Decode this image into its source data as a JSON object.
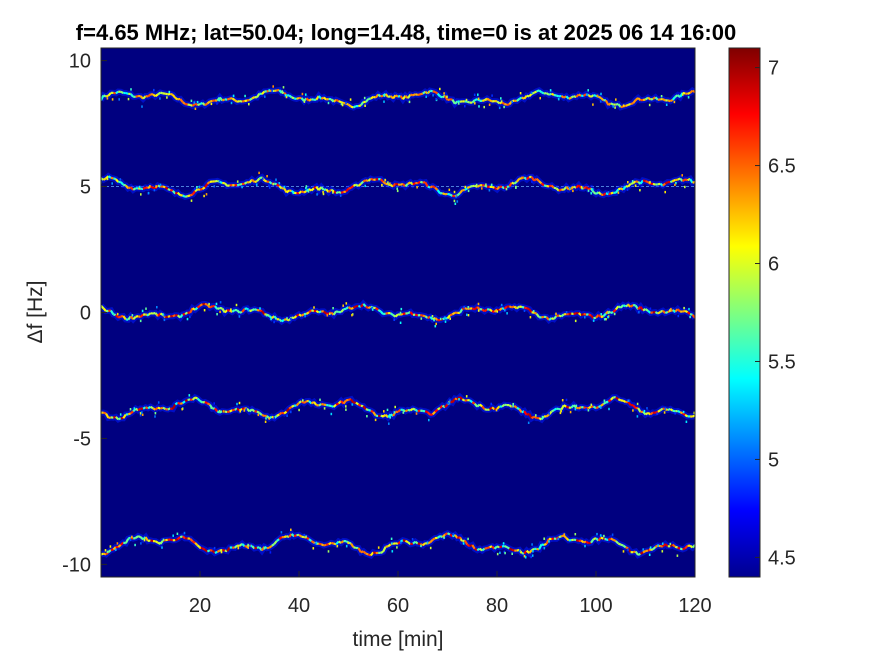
{
  "chart_data": {
    "type": "heatmap",
    "title": "f=4.65 MHz;  lat=50.04; long=14.48, time=0 is at 2025 06 14 16:00",
    "xlabel": "time [min]",
    "ylabel": "Δf [Hz]",
    "xlim": [
      0,
      120
    ],
    "ylim": [
      -10.5,
      10.5
    ],
    "xticks": [
      20,
      40,
      60,
      80,
      100,
      120
    ],
    "xtick_labels": [
      "20",
      "40",
      "60",
      "80",
      "100",
      "120"
    ],
    "yticks": [
      10,
      5,
      0,
      -5,
      -10
    ],
    "ytick_labels": [
      "10",
      "5",
      "0",
      "-5",
      "-10"
    ],
    "colorbar": {
      "colormap": "jet",
      "range": [
        4.4,
        7.1
      ],
      "ticks": [
        7,
        6.5,
        6,
        5.5,
        5,
        4.5
      ],
      "tick_labels": [
        "7",
        "6.5",
        "6",
        "5.5",
        "5",
        "4.5"
      ]
    },
    "background_value": 4.45,
    "traces": [
      {
        "base_hz": 8.5,
        "amplitude_hz": 0.3,
        "peak_value": 6.6
      },
      {
        "base_hz": 5.0,
        "amplitude_hz": 0.35,
        "peak_value": 6.9
      },
      {
        "base_hz": 0.0,
        "amplitude_hz": 0.3,
        "peak_value": 7.0
      },
      {
        "base_hz": -3.8,
        "amplitude_hz": 0.4,
        "peak_value": 7.0
      },
      {
        "base_hz": -9.2,
        "amplitude_hz": 0.4,
        "peak_value": 7.0
      }
    ],
    "reference_line_hz": 5.0,
    "grid": false
  }
}
